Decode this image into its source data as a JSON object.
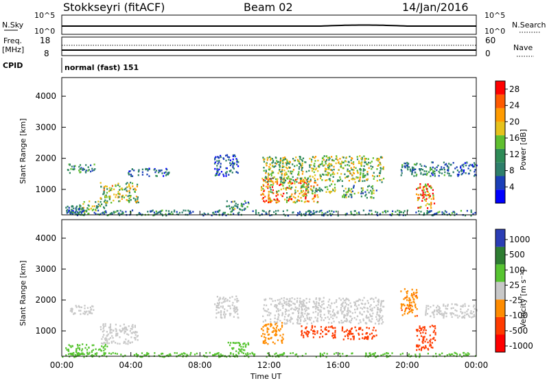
{
  "header": {
    "station": "Stokkseyri (fitACF)",
    "beam": "Beam 02",
    "date": "14/Jan/2016"
  },
  "noise_panel": {
    "left_label": "N.Sky",
    "right_label": "N.Search",
    "left_ticks": [
      "10^5",
      "10^0"
    ],
    "right_ticks": [
      "10^5",
      "10^0"
    ]
  },
  "freq_panel": {
    "left_label_1": "Freq.",
    "left_label_2": "[MHz]",
    "left_ticks": [
      "18",
      "8"
    ],
    "right_label": "Nave",
    "right_ticks": [
      "60",
      "0"
    ]
  },
  "cpid_panel": {
    "label": "CPID",
    "text": "normal (fast) 151"
  },
  "colors": {
    "power": [
      "#0000ff",
      "#1b3fb8",
      "#2e7f6b",
      "#2e8b57",
      "#5fbf2f",
      "#e6c21c",
      "#ff9b00",
      "#ff5a00",
      "#ff0000"
    ],
    "velocity": [
      "#2b3db5",
      "#2e7d32",
      "#57c431",
      "#c8c8c8",
      "#ff8c00",
      "#ff3b00",
      "#ff0000"
    ]
  },
  "chart_data": [
    {
      "type": "heatmap",
      "name": "power",
      "ylabel": "Slant Range [km]",
      "yticks": [
        "1000",
        "2000",
        "3000",
        "4000"
      ],
      "ylim": [
        180,
        4600
      ],
      "xlim": [
        "00:00",
        "24:00"
      ],
      "colorbar_label": "Power [dB]",
      "colorbar_ticks": [
        "4",
        "8",
        "12",
        "16",
        "20",
        "24",
        "28"
      ],
      "colorbar_range": [
        0,
        30
      ],
      "blobs": [
        {
          "t": [
            0.3,
            1.9
          ],
          "r": [
            1550,
            1850
          ],
          "v": 10
        },
        {
          "t": [
            0.2,
            1.0
          ],
          "r": [
            250,
            500
          ],
          "v": 8
        },
        {
          "t": [
            1.0,
            2.6
          ],
          "r": [
            300,
            650
          ],
          "v": 14
        },
        {
          "t": [
            2.2,
            4.4
          ],
          "r": [
            600,
            1250
          ],
          "v": 16
        },
        {
          "t": [
            3.8,
            6.2
          ],
          "r": [
            1450,
            1700
          ],
          "v": 7
        },
        {
          "t": [
            8.8,
            10.2
          ],
          "r": [
            1450,
            2150
          ],
          "v": 6
        },
        {
          "t": [
            9.5,
            10.8
          ],
          "r": [
            350,
            650
          ],
          "v": 11
        },
        {
          "t": [
            11.5,
            14.8
          ],
          "r": [
            600,
            1400
          ],
          "v": 21
        },
        {
          "t": [
            11.6,
            18.6
          ],
          "r": [
            1250,
            2100
          ],
          "v": 15
        },
        {
          "t": [
            13.8,
            15.8
          ],
          "r": [
            900,
            1200
          ],
          "v": 13
        },
        {
          "t": [
            16.2,
            18.2
          ],
          "r": [
            750,
            1150
          ],
          "v": 12
        },
        {
          "t": [
            20.5,
            21.6
          ],
          "r": [
            400,
            1200
          ],
          "v": 24
        },
        {
          "t": [
            19.6,
            22.8
          ],
          "r": [
            1450,
            1900
          ],
          "v": 9
        },
        {
          "t": [
            22.8,
            24.0
          ],
          "r": [
            1450,
            1900
          ],
          "v": 6
        },
        {
          "t": [
            0.0,
            24.0
          ],
          "r": [
            180,
            350
          ],
          "v": 9
        }
      ]
    },
    {
      "type": "heatmap",
      "name": "velocity",
      "ylabel": "Slant Range [km]",
      "yticks": [
        "1000",
        "2000",
        "3000",
        "4000"
      ],
      "ylim": [
        180,
        4600
      ],
      "xlim": [
        "00:00",
        "24:00"
      ],
      "xticks": [
        "00:00",
        "04:00",
        "08:00",
        "12:00",
        "16:00",
        "20:00",
        "00:00"
      ],
      "xlabel": "Time UT",
      "colorbar_label": "Velocity [m s⁻¹]",
      "colorbar_ticks": [
        "1000",
        "500",
        "100",
        "25",
        "-25",
        "-100",
        "-500",
        "-1000"
      ],
      "blobs": [
        {
          "t": [
            0.3,
            1.9
          ],
          "r": [
            1550,
            1850
          ],
          "v": 0
        },
        {
          "t": [
            0.2,
            2.6
          ],
          "r": [
            250,
            600
          ],
          "v": 60
        },
        {
          "t": [
            2.2,
            4.4
          ],
          "r": [
            600,
            1250
          ],
          "v": 0
        },
        {
          "t": [
            8.8,
            10.2
          ],
          "r": [
            1450,
            2150
          ],
          "v": 0
        },
        {
          "t": [
            9.5,
            10.8
          ],
          "r": [
            300,
            650
          ],
          "v": 60
        },
        {
          "t": [
            11.5,
            12.8
          ],
          "r": [
            600,
            1300
          ],
          "v": -70
        },
        {
          "t": [
            11.6,
            18.6
          ],
          "r": [
            1250,
            2100
          ],
          "v": 0
        },
        {
          "t": [
            13.8,
            15.8
          ],
          "r": [
            800,
            1200
          ],
          "v": -150
        },
        {
          "t": [
            16.2,
            18.2
          ],
          "r": [
            750,
            1150
          ],
          "v": -150
        },
        {
          "t": [
            20.5,
            21.6
          ],
          "r": [
            400,
            1200
          ],
          "v": -150
        },
        {
          "t": [
            19.6,
            20.6
          ],
          "r": [
            1500,
            2400
          ],
          "v": -80
        },
        {
          "t": [
            21.0,
            24.0
          ],
          "r": [
            1450,
            1900
          ],
          "v": 0
        },
        {
          "t": [
            0.0,
            24.0
          ],
          "r": [
            180,
            320
          ],
          "v": 60
        }
      ]
    }
  ]
}
